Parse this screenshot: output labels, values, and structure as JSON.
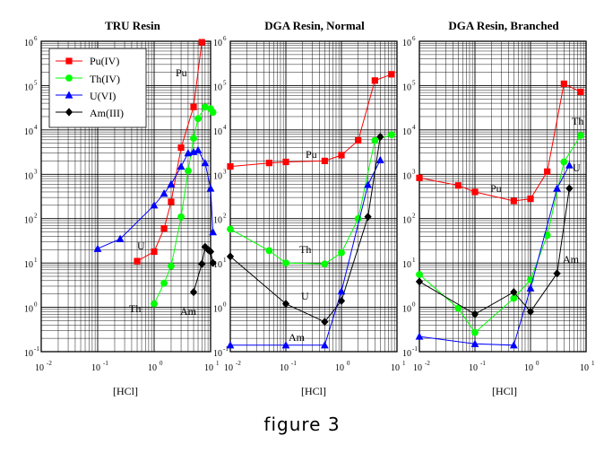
{
  "figure": {
    "caption": "figure 3"
  },
  "chart_data": [
    {
      "type": "line",
      "title": "TRU Resin",
      "xlabel": "[HCl]",
      "ylabel": "",
      "xscale": "log",
      "yscale": "log",
      "xlim": [
        0.01,
        10
      ],
      "ylim": [
        0.1,
        1000000
      ],
      "grid": true,
      "legend": {
        "placement": "top-left",
        "entries": [
          "Pu(IV)",
          "Th(IV)",
          "U(VI)",
          "Am(III)"
        ]
      },
      "series": [
        {
          "name": "Pu(IV)",
          "color": "#ff0000",
          "marker": "square",
          "x": [
            0.5,
            1,
            1.5,
            2,
            3,
            5,
            7
          ],
          "y": [
            11,
            18,
            60,
            240,
            4000,
            33000,
            950000
          ]
        },
        {
          "name": "Th(IV)",
          "color": "#00ff00",
          "marker": "circle",
          "x": [
            1,
            1.5,
            2,
            3,
            4,
            5,
            6,
            8,
            10,
            11
          ],
          "y": [
            1.2,
            3.5,
            8.5,
            110,
            1200,
            6500,
            18000,
            33000,
            30000,
            25000
          ]
        },
        {
          "name": "U(VI)",
          "color": "#0000ff",
          "marker": "triangle",
          "x": [
            0.1,
            0.25,
            1,
            1.5,
            2,
            3,
            4,
            5,
            6,
            8,
            10,
            11
          ],
          "y": [
            21,
            35,
            200,
            370,
            600,
            1500,
            3000,
            3200,
            3500,
            1800,
            480,
            50
          ]
        },
        {
          "name": "Am(III)",
          "color": "#000000",
          "marker": "diamond",
          "x": [
            5,
            7,
            8,
            9,
            10,
            11
          ],
          "y": [
            2.2,
            9.5,
            23,
            20,
            18,
            10
          ]
        }
      ],
      "annotations": [
        "Pu",
        "U",
        "Th",
        "Am"
      ]
    },
    {
      "type": "line",
      "title": "DGA Resin, Normal",
      "xlabel": "[HCl]",
      "ylabel": "",
      "xscale": "log",
      "yscale": "log",
      "xlim": [
        0.01,
        10
      ],
      "ylim": [
        0.1,
        1000000
      ],
      "grid": true,
      "series": [
        {
          "color": "#ff0000",
          "marker": "square",
          "x": [
            0.01,
            0.05,
            0.1,
            0.5,
            1,
            2,
            4,
            8
          ],
          "y": [
            1500,
            1800,
            1900,
            2000,
            2700,
            5800,
            130000,
            180000
          ]
        },
        {
          "color": "#00ff00",
          "marker": "circle",
          "x": [
            0.01,
            0.05,
            0.1,
            0.5,
            1,
            2,
            4,
            8
          ],
          "y": [
            58,
            19,
            10,
            9.5,
            17,
            100,
            5800,
            7800
          ]
        },
        {
          "color": "#0000ff",
          "marker": "triangle",
          "x": [
            0.01,
            0.1,
            0.5,
            1,
            3,
            5
          ],
          "y": [
            0.14,
            0.14,
            0.14,
            2.3,
            580,
            2100
          ]
        },
        {
          "color": "#000000",
          "marker": "diamond",
          "x": [
            0.01,
            0.1,
            0.5,
            1,
            3,
            5
          ],
          "y": [
            14,
            1.2,
            0.47,
            1.4,
            110,
            7000
          ]
        }
      ],
      "annotations": [
        "Pu",
        "Th",
        "U",
        "Am"
      ]
    },
    {
      "type": "line",
      "title": "DGA Resin, Branched",
      "xlabel": "[HCl]",
      "ylabel": "",
      "xscale": "log",
      "yscale": "log",
      "xlim": [
        0.01,
        10
      ],
      "ylim": [
        0.1,
        1000000
      ],
      "grid": true,
      "series": [
        {
          "color": "#ff0000",
          "marker": "square",
          "x": [
            0.01,
            0.05,
            0.1,
            0.5,
            1,
            2,
            4,
            8
          ],
          "y": [
            830,
            560,
            400,
            250,
            280,
            1150,
            110000,
            72000
          ]
        },
        {
          "color": "#00ff00",
          "marker": "circle",
          "x": [
            0.01,
            0.05,
            0.1,
            0.5,
            1,
            2,
            4,
            8
          ],
          "y": [
            5.5,
            0.95,
            0.27,
            1.6,
            4.2,
            42,
            1900,
            7500
          ]
        },
        {
          "color": "#0000ff",
          "marker": "triangle",
          "x": [
            0.01,
            0.1,
            0.5,
            1,
            3,
            5
          ],
          "y": [
            0.22,
            0.15,
            0.14,
            2.7,
            480,
            1600
          ]
        },
        {
          "color": "#000000",
          "marker": "diamond",
          "x": [
            0.01,
            0.1,
            0.5,
            1,
            3,
            5
          ],
          "y": [
            3.8,
            0.7,
            2.2,
            0.8,
            5.8,
            480
          ]
        }
      ],
      "annotations": [
        "Pu",
        "Th",
        "U",
        "Am"
      ]
    }
  ]
}
